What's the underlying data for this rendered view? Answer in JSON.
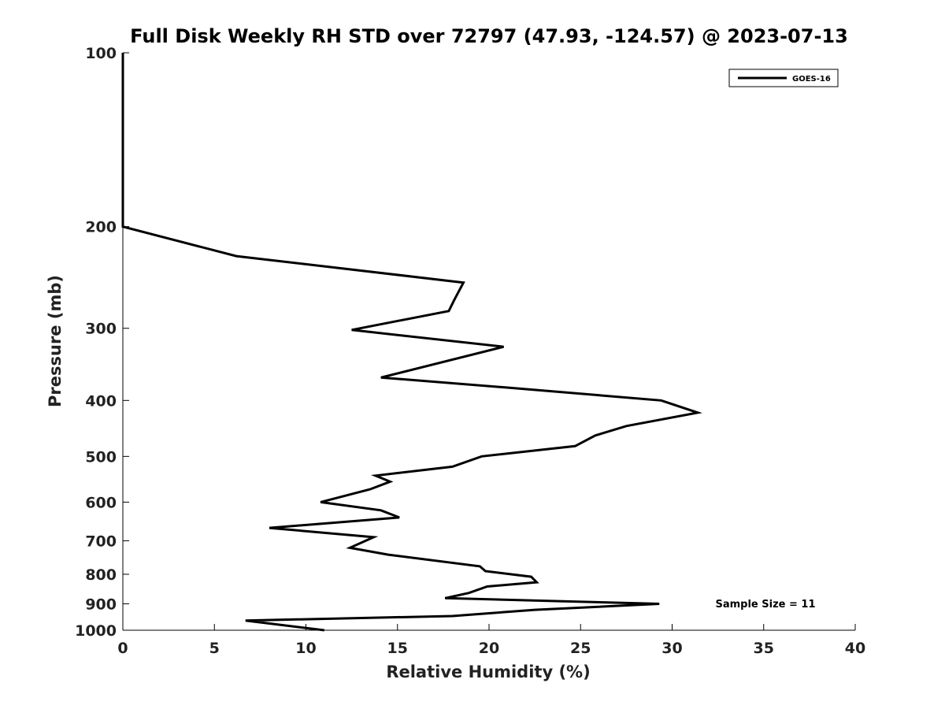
{
  "chart_data": {
    "type": "line",
    "title": "Full Disk Weekly RH STD over 72797 (47.93, -124.57) @ 2023-07-13",
    "xlabel": "Relative Humidity (%)",
    "ylabel": "Pressure (mb)",
    "xlim": [
      0,
      40
    ],
    "ylim": [
      1000,
      100
    ],
    "y_scale": "log",
    "x_ticks": [
      0,
      5,
      10,
      15,
      20,
      25,
      30,
      35,
      40
    ],
    "y_ticks": [
      100,
      200,
      300,
      400,
      500,
      600,
      700,
      800,
      900,
      1000
    ],
    "legend": {
      "position": "top-right",
      "entries": [
        "GOES-16"
      ]
    },
    "annotation": "Sample Size = 11",
    "series": [
      {
        "name": "GOES-16",
        "color": "#000000",
        "points": [
          [
            0.0,
            100
          ],
          [
            0.0,
            150
          ],
          [
            0.0,
            200
          ],
          [
            6.2,
            225
          ],
          [
            18.6,
            250
          ],
          [
            18.1,
            268
          ],
          [
            17.8,
            280
          ],
          [
            12.5,
            302
          ],
          [
            20.8,
            323
          ],
          [
            14.1,
            365
          ],
          [
            21.0,
            380
          ],
          [
            29.4,
            400
          ],
          [
            31.4,
            420
          ],
          [
            27.5,
            443
          ],
          [
            25.8,
            460
          ],
          [
            24.7,
            480
          ],
          [
            19.6,
            500
          ],
          [
            18.0,
            521
          ],
          [
            13.8,
            540
          ],
          [
            14.6,
            553
          ],
          [
            13.5,
            570
          ],
          [
            10.8,
            600
          ],
          [
            14.1,
            620
          ],
          [
            15.1,
            638
          ],
          [
            8.0,
            665
          ],
          [
            13.7,
            690
          ],
          [
            12.4,
            720
          ],
          [
            14.5,
            740
          ],
          [
            19.5,
            775
          ],
          [
            19.8,
            790
          ],
          [
            22.3,
            808
          ],
          [
            22.6,
            826
          ],
          [
            19.9,
            840
          ],
          [
            18.9,
            862
          ],
          [
            17.6,
            880
          ],
          [
            29.3,
            900
          ],
          [
            22.5,
            922
          ],
          [
            18.0,
            945
          ],
          [
            6.7,
            962
          ],
          [
            11.0,
            1000
          ]
        ]
      }
    ]
  }
}
